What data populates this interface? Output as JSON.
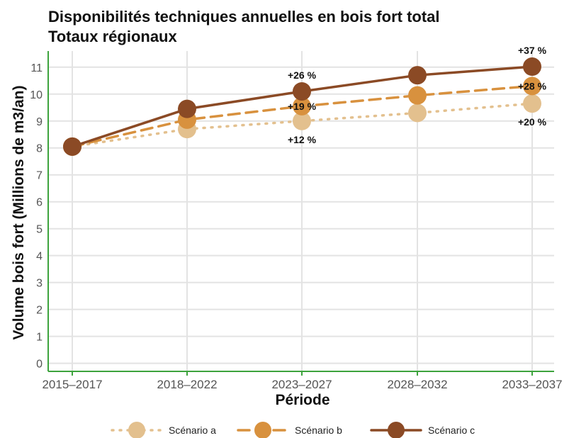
{
  "chart_data": {
    "type": "line",
    "title": "Disponibilités techniques annuelles en bois fort total",
    "subtitle": "Totaux régionaux",
    "xlabel": "Période",
    "ylabel": "Volume bois fort (Millions de m3/an)",
    "categories": [
      "2015–2017",
      "2018–2022",
      "2023–2027",
      "2028–2032",
      "2033–2037"
    ],
    "ylim": [
      -0.3,
      11.6
    ],
    "yticks": [
      0,
      1,
      2,
      3,
      4,
      5,
      6,
      7,
      8,
      9,
      10,
      11
    ],
    "grid": true,
    "legend_position": "bottom",
    "series": [
      {
        "name": "Scénario a",
        "values": [
          8.05,
          8.7,
          9.0,
          9.3,
          9.65
        ],
        "color": "#e3c08e",
        "line_style": "dotted"
      },
      {
        "name": "Scénario b",
        "values": [
          8.05,
          9.05,
          9.55,
          9.95,
          10.3
        ],
        "color": "#d8913e",
        "line_style": "dashed"
      },
      {
        "name": "Scénario c",
        "values": [
          8.05,
          9.45,
          10.1,
          10.7,
          11.02
        ],
        "color": "#8b4a25",
        "line_style": "solid"
      }
    ],
    "annotations": [
      {
        "text": "+26 %",
        "x": "2023–2027",
        "y": 10.1,
        "anchor": "above"
      },
      {
        "text": "+19 %",
        "x": "2023–2027",
        "y": 9.55,
        "anchor": "on"
      },
      {
        "text": "+12 %",
        "x": "2023–2027",
        "y": 9.0,
        "anchor": "below"
      },
      {
        "text": "+37 %",
        "x": "2033–2037",
        "y": 11.02,
        "anchor": "above"
      },
      {
        "text": "+28 %",
        "x": "2033–2037",
        "y": 10.3,
        "anchor": "on"
      },
      {
        "text": "+20 %",
        "x": "2033–2037",
        "y": 9.65,
        "anchor": "below"
      }
    ]
  },
  "colors": {
    "grid": "#e3e3e3",
    "axis": "#3da33d"
  }
}
